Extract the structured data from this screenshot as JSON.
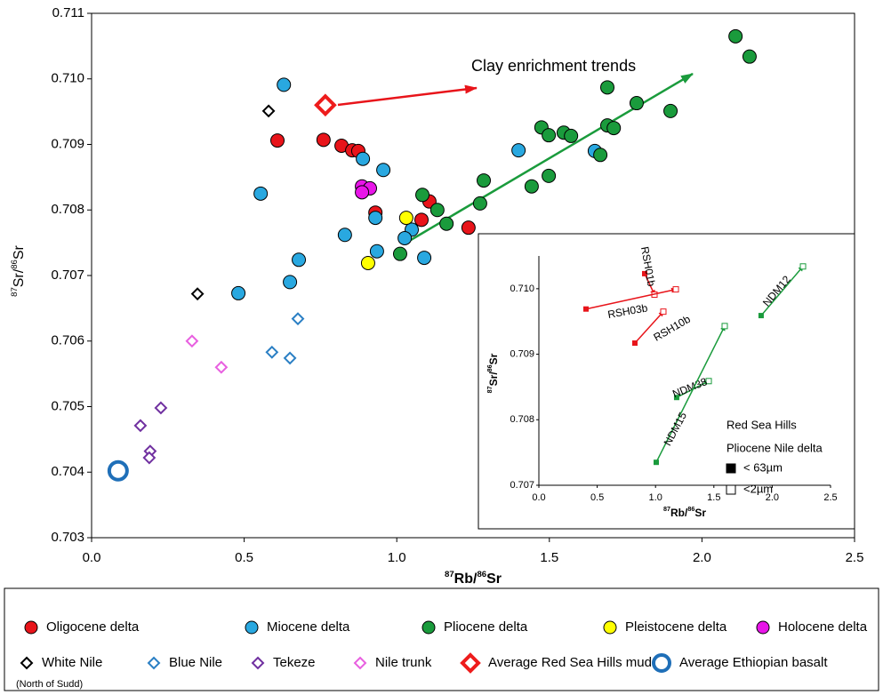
{
  "chart_data": [
    {
      "type": "scatter",
      "xlabel_parts": [
        "87",
        "Rb/",
        "86",
        "Sr"
      ],
      "ylabel_parts": [
        "87",
        "Sr/",
        "86",
        "Sr"
      ],
      "annotation": "Clay enrichment trends",
      "xlim": [
        0,
        2.5
      ],
      "ylim": [
        0.703,
        0.711
      ],
      "xticks": [
        {
          "value": 0,
          "label": "0.0"
        },
        0.5,
        {
          "value": 1,
          "label": "1.0"
        },
        1.5,
        {
          "value": 2,
          "label": "2.0"
        },
        2.5
      ],
      "yticks": [
        0.703,
        0.704,
        0.705,
        0.706,
        0.707,
        0.708,
        0.709,
        {
          "value": 0.71,
          "label": "0.710"
        },
        0.711
      ],
      "series": [
        {
          "name": "Oligocene delta",
          "color": "#e8141a",
          "marker": "circle",
          "x": [
            0.609,
            0.76,
            0.819,
            0.854,
            0.874,
            0.93,
            1.107,
            1.081,
            1.235
          ],
          "y": [
            0.70906,
            0.70907,
            0.70898,
            0.70891,
            0.7089,
            0.70796,
            0.70813,
            0.70785,
            0.70773
          ]
        },
        {
          "name": "Miocene delta",
          "color": "#29a8e0",
          "marker": "circle",
          "x": [
            0.63,
            0.554,
            0.889,
            0.956,
            0.83,
            0.93,
            1.049,
            1.026,
            0.935,
            1.09,
            0.679,
            0.65,
            0.481,
            1.399,
            1.649
          ],
          "y": [
            0.70991,
            0.70825,
            0.70878,
            0.70861,
            0.70762,
            0.70788,
            0.7077,
            0.70757,
            0.70737,
            0.70727,
            0.70724,
            0.7069,
            0.70673,
            0.70891,
            0.7089
          ]
        },
        {
          "name": "Pliocene delta",
          "color": "#1a9b3c",
          "marker": "circle",
          "x": [
            2.11,
            2.156,
            1.786,
            1.897,
            1.69,
            1.69,
            1.711,
            1.474,
            1.498,
            1.547,
            1.571,
            1.667,
            1.498,
            1.442,
            1.285,
            1.273,
            1.084,
            1.133,
            1.163,
            1.011
          ],
          "y": [
            0.71065,
            0.71034,
            0.70963,
            0.70951,
            0.70987,
            0.70929,
            0.70925,
            0.70926,
            0.70914,
            0.70918,
            0.70913,
            0.70884,
            0.70852,
            0.70836,
            0.70845,
            0.7081,
            0.70823,
            0.708,
            0.70779,
            0.70733
          ]
        },
        {
          "name": "Pleistocene delta",
          "color": "#ffff00",
          "marker": "circle",
          "x": [
            1.031,
            0.906
          ],
          "y": [
            0.70788,
            0.70719
          ]
        },
        {
          "name": "Holocene delta",
          "color": "#e815e8",
          "marker": "circle",
          "x": [
            0.886,
            0.912,
            0.886
          ],
          "y": [
            0.70836,
            0.70833,
            0.70827
          ]
        },
        {
          "name": "White Nile",
          "note": "(North of Sudd)",
          "color": "#000000",
          "marker": "diamond",
          "x": [
            0.58,
            0.347
          ],
          "y": [
            0.70951,
            0.70672
          ]
        },
        {
          "name": "Blue Nile",
          "color": "#2a7fc4",
          "marker": "diamond",
          "x": [
            0.676,
            0.591,
            0.65
          ],
          "y": [
            0.70634,
            0.70583,
            0.70574
          ]
        },
        {
          "name": "Tekeze",
          "color": "#7030a0",
          "marker": "diamond",
          "x": [
            0.227,
            0.16,
            0.192,
            0.189
          ],
          "y": [
            0.70498,
            0.70471,
            0.70432,
            0.70422
          ]
        },
        {
          "name": "Nile trunk",
          "color": "#e860e0",
          "marker": "diamond",
          "x": [
            0.329,
            0.425
          ],
          "y": [
            0.706,
            0.7056
          ]
        },
        {
          "name": "Average Red Sea Hills mud",
          "color": "#ee1c1c",
          "marker": "large diamond",
          "x": [
            0.766
          ],
          "y": [
            0.7096
          ]
        },
        {
          "name": "Average Ethiopian basalt",
          "color": "#1f6fb8",
          "marker": "large ring",
          "x": [
            0.087
          ],
          "y": [
            0.70402
          ]
        }
      ]
    },
    {
      "type": "scatter",
      "xlabel_parts": [
        "87",
        "Rb/",
        "86",
        "Sr"
      ],
      "ylabel_parts": [
        "87",
        "Sr/",
        "86",
        "Sr"
      ],
      "xlim": [
        0,
        2.5
      ],
      "ylim": [
        0.707,
        0.7105
      ],
      "xticks": [
        {
          "value": 0,
          "label": "0.0"
        },
        0.5,
        {
          "value": 1,
          "label": "1.0"
        },
        1.5,
        {
          "value": 2,
          "label": "2.0"
        },
        2.5
      ],
      "yticks": [
        0.707,
        0.708,
        0.709,
        {
          "value": 0.71,
          "label": "0.710"
        }
      ],
      "groups": [
        {
          "name": "Red Sea Hills",
          "color": "#e8141a"
        },
        {
          "name": "Pliocene Nile delta",
          "color": "#1a9b3c"
        }
      ],
      "size_fractions": [
        "< 63µm",
        "<2µm"
      ],
      "samples": [
        {
          "name": "RSH01b",
          "group": 0,
          "x": [
            0.907,
            0.991
          ],
          "y": [
            0.71023,
            0.70991
          ]
        },
        {
          "name": "RSH03b",
          "group": 0,
          "x": [
            0.404,
            1.174
          ],
          "y": [
            0.70969,
            0.70999
          ]
        },
        {
          "name": "RSH10b",
          "group": 0,
          "x": [
            0.823,
            1.067
          ],
          "y": [
            0.70917,
            0.70965
          ]
        },
        {
          "name": "NDM38",
          "group": 1,
          "x": [
            1.181,
            1.456
          ],
          "y": [
            0.70834,
            0.70859
          ]
        },
        {
          "name": "NDM15",
          "group": 1,
          "x": [
            1.006,
            1.593
          ],
          "y": [
            0.70735,
            0.70943
          ]
        },
        {
          "name": "NDM12",
          "group": 1,
          "x": [
            1.905,
            2.264
          ],
          "y": [
            0.70959,
            0.71034
          ]
        }
      ]
    }
  ]
}
